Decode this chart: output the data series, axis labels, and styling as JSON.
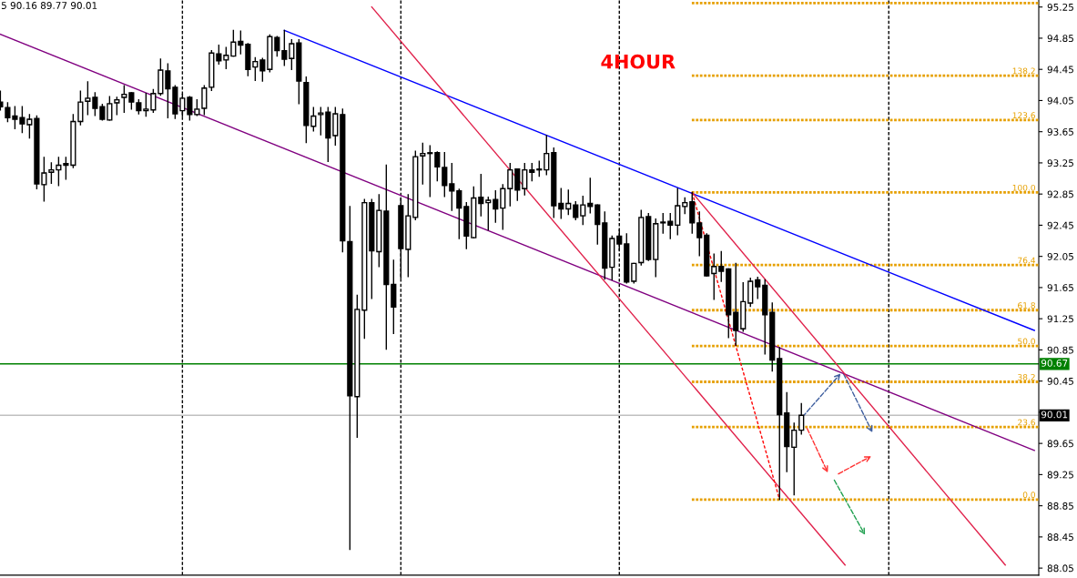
{
  "chart_data": {
    "type": "candlestick",
    "categories": [
      null,
      null,
      null,
      null,
      null,
      null,
      null,
      null,
      null,
      null,
      null,
      null,
      null,
      null,
      null,
      null,
      null,
      null,
      null,
      null,
      null,
      null,
      null,
      null,
      null,
      null,
      null,
      null,
      null,
      null,
      null,
      null,
      null,
      null,
      null,
      null,
      null,
      null,
      null,
      null,
      null,
      null,
      null,
      null,
      null,
      null,
      null,
      null,
      null,
      null,
      null,
      null,
      null,
      null,
      null,
      null,
      null,
      null,
      null,
      null,
      null,
      null,
      null,
      null,
      null,
      null,
      null,
      null,
      null,
      null,
      null,
      null,
      null,
      null,
      null,
      null,
      null,
      null,
      null,
      null,
      null,
      null,
      null,
      null,
      null,
      null,
      null,
      null,
      null,
      null,
      null,
      null,
      null,
      null,
      null,
      null,
      null,
      null,
      null,
      null,
      null,
      null,
      null,
      null,
      null,
      null,
      null,
      null,
      null,
      null,
      null,
      null,
      null,
      null,
      null,
      null,
      null,
      null,
      null,
      null,
      null,
      null,
      null,
      null,
      null,
      null,
      null,
      null,
      null,
      null,
      null,
      null,
      null,
      null,
      null,
      null,
      null,
      null,
      null,
      null,
      null,
      null,
      null
    ],
    "ohlc": [
      [
        94.03,
        94.17,
        93.93,
        93.97
      ],
      [
        93.96,
        94.02,
        93.78,
        93.83
      ],
      [
        93.85,
        93.97,
        93.69,
        93.81
      ],
      [
        93.83,
        93.97,
        93.64,
        93.75
      ],
      [
        93.74,
        93.87,
        93.57,
        93.81
      ],
      [
        93.82,
        93.85,
        92.92,
        92.98
      ],
      [
        92.97,
        93.32,
        92.76,
        93.12
      ],
      [
        93.13,
        93.25,
        92.99,
        93.16
      ],
      [
        93.16,
        93.32,
        92.96,
        93.22
      ],
      [
        93.24,
        93.32,
        93.04,
        93.22
      ],
      [
        93.22,
        93.87,
        93.19,
        93.78
      ],
      [
        93.78,
        94.17,
        93.74,
        94.03
      ],
      [
        94.04,
        94.29,
        93.87,
        94.08
      ],
      [
        94.09,
        94.15,
        93.86,
        93.95
      ],
      [
        93.97,
        94.0,
        93.8,
        93.81
      ],
      [
        93.8,
        94.1,
        93.8,
        94.01
      ],
      [
        94.02,
        94.09,
        93.87,
        94.06
      ],
      [
        94.09,
        94.24,
        93.9,
        94.13
      ],
      [
        94.15,
        94.15,
        93.94,
        94.03
      ],
      [
        94.02,
        94.06,
        93.88,
        93.92
      ],
      [
        93.92,
        94.14,
        93.85,
        93.94
      ],
      [
        93.93,
        94.19,
        93.9,
        94.14
      ],
      [
        94.14,
        94.58,
        94.12,
        94.44
      ],
      [
        94.43,
        94.52,
        93.83,
        94.2
      ],
      [
        94.22,
        94.24,
        93.82,
        93.88
      ],
      [
        93.92,
        94.13,
        93.85,
        94.08
      ],
      [
        94.09,
        94.1,
        93.8,
        93.87
      ],
      [
        93.87,
        94.06,
        93.86,
        93.94
      ],
      [
        93.95,
        94.24,
        93.87,
        94.21
      ],
      [
        94.22,
        94.69,
        94.18,
        94.66
      ],
      [
        94.65,
        94.76,
        94.52,
        94.56
      ],
      [
        94.57,
        94.73,
        94.46,
        94.63
      ],
      [
        94.62,
        94.95,
        94.62,
        94.8
      ],
      [
        94.81,
        94.94,
        94.65,
        94.76
      ],
      [
        94.77,
        94.78,
        94.37,
        94.45
      ],
      [
        94.48,
        94.6,
        94.31,
        94.55
      ],
      [
        94.57,
        94.59,
        94.3,
        94.43
      ],
      [
        94.45,
        94.89,
        94.42,
        94.87
      ],
      [
        94.86,
        94.87,
        94.62,
        94.69
      ],
      [
        94.69,
        94.95,
        94.5,
        94.58
      ],
      [
        94.59,
        94.83,
        94.45,
        94.78
      ],
      [
        94.79,
        94.83,
        94.01,
        94.3
      ],
      [
        94.28,
        94.35,
        93.51,
        93.73
      ],
      [
        93.72,
        93.96,
        93.66,
        93.85
      ],
      [
        93.87,
        93.96,
        93.61,
        93.89
      ],
      [
        93.9,
        93.96,
        93.27,
        93.57
      ],
      [
        93.6,
        93.96,
        93.48,
        93.88
      ],
      [
        93.87,
        93.94,
        92.11,
        92.25
      ],
      [
        92.24,
        92.69,
        88.29,
        90.26
      ],
      [
        90.25,
        91.55,
        89.73,
        91.37
      ],
      [
        91.36,
        92.78,
        91.0,
        92.74
      ],
      [
        92.74,
        92.78,
        91.51,
        92.12
      ],
      [
        92.11,
        92.84,
        91.92,
        92.64
      ],
      [
        92.63,
        93.22,
        90.86,
        91.69
      ],
      [
        91.69,
        92.0,
        91.06,
        91.4
      ],
      [
        92.7,
        92.8,
        91.77,
        92.15
      ],
      [
        92.14,
        92.84,
        91.79,
        92.57
      ],
      [
        92.55,
        93.4,
        92.52,
        93.33
      ],
      [
        93.34,
        93.5,
        92.98,
        93.37
      ],
      [
        93.38,
        93.47,
        92.82,
        93.37
      ],
      [
        93.38,
        93.39,
        93.02,
        93.2
      ],
      [
        93.19,
        93.38,
        92.82,
        92.96
      ],
      [
        92.98,
        93.24,
        92.64,
        92.89
      ],
      [
        92.89,
        92.91,
        92.28,
        92.67
      ],
      [
        92.69,
        92.74,
        92.15,
        92.31
      ],
      [
        92.29,
        92.94,
        92.29,
        92.8
      ],
      [
        92.81,
        93.1,
        92.57,
        92.73
      ],
      [
        92.74,
        92.81,
        92.39,
        92.77
      ],
      [
        92.78,
        92.89,
        92.49,
        92.66
      ],
      [
        92.67,
        92.97,
        92.4,
        92.92
      ],
      [
        92.92,
        93.24,
        92.7,
        93.16
      ],
      [
        93.17,
        93.17,
        92.77,
        92.9
      ],
      [
        92.92,
        93.24,
        92.84,
        93.16
      ],
      [
        93.16,
        93.24,
        93.02,
        93.13
      ],
      [
        93.17,
        93.27,
        93.08,
        93.16
      ],
      [
        93.16,
        93.6,
        93.1,
        93.37
      ],
      [
        93.38,
        93.44,
        92.55,
        92.7
      ],
      [
        92.73,
        92.92,
        92.54,
        92.66
      ],
      [
        92.66,
        92.9,
        92.59,
        92.73
      ],
      [
        92.71,
        92.75,
        92.52,
        92.55
      ],
      [
        92.57,
        92.82,
        92.46,
        92.71
      ],
      [
        92.73,
        93.05,
        92.61,
        92.69
      ],
      [
        92.71,
        92.71,
        92.21,
        92.46
      ],
      [
        92.48,
        92.62,
        91.76,
        91.9
      ],
      [
        91.91,
        92.31,
        91.75,
        92.28
      ],
      [
        92.31,
        92.39,
        92.13,
        92.21
      ],
      [
        92.21,
        92.34,
        91.71,
        91.72
      ],
      [
        91.73,
        91.96,
        91.71,
        91.96
      ],
      [
        91.97,
        92.64,
        91.94,
        92.55
      ],
      [
        92.56,
        92.6,
        92.0,
        92.01
      ],
      [
        92.01,
        92.53,
        91.79,
        92.47
      ],
      [
        92.49,
        92.6,
        92.35,
        92.48
      ],
      [
        92.5,
        92.6,
        92.28,
        92.45
      ],
      [
        92.45,
        92.92,
        92.33,
        92.7
      ],
      [
        92.69,
        92.8,
        92.6,
        92.74
      ],
      [
        92.75,
        92.87,
        92.35,
        92.48
      ],
      [
        92.48,
        92.62,
        92.06,
        92.29
      ],
      [
        92.32,
        92.34,
        91.8,
        91.8
      ],
      [
        91.83,
        92.08,
        91.5,
        91.92
      ],
      [
        91.92,
        92.11,
        91.73,
        91.86
      ],
      [
        91.89,
        91.89,
        91.01,
        91.3
      ],
      [
        91.33,
        91.96,
        90.91,
        91.1
      ],
      [
        91.12,
        91.71,
        91.09,
        91.47
      ],
      [
        91.45,
        91.77,
        91.41,
        91.73
      ],
      [
        91.75,
        91.78,
        91.51,
        91.66
      ],
      [
        91.68,
        91.75,
        90.8,
        91.3
      ],
      [
        91.33,
        91.45,
        90.58,
        90.72
      ],
      [
        90.74,
        90.88,
        88.93,
        90.02
      ],
      [
        90.04,
        90.3,
        89.29,
        89.61
      ],
      [
        89.6,
        89.91,
        88.99,
        89.82
      ],
      [
        89.82,
        90.16,
        89.77,
        90.01
      ],
      null,
      null,
      null,
      null,
      null,
      null,
      null,
      null,
      null,
      null,
      null,
      null,
      null,
      null,
      null,
      null,
      null,
      null,
      null,
      null,
      null,
      null,
      null,
      null,
      null,
      null,
      null,
      null,
      null,
      null,
      null,
      null
    ],
    "series": [
      {
        "type": "line",
        "color": "#0000ff",
        "values": [
          null,
          null,
          null,
          null,
          null,
          null,
          null,
          null,
          null,
          null,
          null,
          null,
          null,
          null,
          null,
          null,
          null,
          null,
          null,
          null,
          null,
          null,
          null,
          null,
          null,
          null,
          null,
          null,
          null,
          null,
          null,
          null,
          null,
          null,
          null,
          null,
          null,
          null,
          null,
          94.95,
          null,
          null,
          null,
          null,
          null,
          null,
          null,
          null,
          null,
          null,
          null,
          null,
          null,
          null,
          null,
          null,
          null,
          null,
          null,
          null,
          null,
          null,
          null,
          null,
          null,
          null,
          null,
          null,
          null,
          null,
          null,
          null,
          null,
          null,
          null,
          null,
          null,
          null,
          null,
          null,
          null,
          null,
          null,
          null,
          null,
          null,
          null,
          null,
          null,
          null,
          null,
          null,
          null,
          null,
          null,
          null,
          null,
          null,
          null,
          null,
          null,
          null,
          null,
          null,
          null,
          null,
          null,
          null,
          null,
          null,
          null,
          null,
          null,
          null,
          null,
          null,
          null,
          null,
          null,
          null,
          null,
          null,
          null,
          null,
          null,
          null,
          null,
          null,
          null,
          null,
          null,
          null,
          null,
          null,
          null,
          null,
          null,
          null,
          null,
          null,
          null,
          null,
          91.1
        ]
      },
      {
        "type": "line",
        "color": "#800080",
        "values": [
          94.9,
          null,
          null,
          null,
          null,
          null,
          null,
          null,
          null,
          null,
          null,
          null,
          null,
          null,
          null,
          null,
          null,
          null,
          null,
          null,
          null,
          null,
          null,
          null,
          null,
          null,
          null,
          null,
          null,
          null,
          null,
          null,
          null,
          null,
          null,
          null,
          null,
          null,
          null,
          null,
          null,
          null,
          null,
          null,
          null,
          null,
          null,
          null,
          null,
          null,
          null,
          null,
          null,
          null,
          null,
          null,
          null,
          null,
          null,
          null,
          null,
          null,
          null,
          null,
          null,
          null,
          null,
          null,
          null,
          null,
          null,
          null,
          null,
          null,
          null,
          null,
          null,
          null,
          null,
          null,
          null,
          null,
          null,
          null,
          null,
          null,
          null,
          null,
          null,
          null,
          null,
          null,
          null,
          null,
          null,
          null,
          null,
          null,
          null,
          null,
          null,
          null,
          null,
          null,
          null,
          null,
          null,
          null,
          null,
          null,
          null,
          null,
          null,
          null,
          null,
          null,
          null,
          null,
          null,
          null,
          null,
          null,
          null,
          null,
          null,
          null,
          null,
          null,
          null,
          null,
          null,
          null,
          null,
          null,
          null,
          null,
          null,
          null,
          null,
          null,
          null,
          null,
          89.56
        ]
      },
      {
        "type": "line",
        "color": "#e0204a",
        "values": [
          null,
          null,
          null,
          null,
          null,
          null,
          null,
          null,
          null,
          null,
          null,
          null,
          null,
          null,
          null,
          null,
          null,
          null,
          null,
          null,
          null,
          null,
          null,
          null,
          null,
          null,
          null,
          null,
          null,
          null,
          null,
          null,
          null,
          null,
          null,
          null,
          null,
          null,
          null,
          null,
          null,
          null,
          null,
          null,
          null,
          null,
          null,
          null,
          null,
          null,
          null,
          95.25,
          null,
          null,
          null,
          null,
          null,
          null,
          null,
          null,
          null,
          null,
          null,
          null,
          null,
          null,
          null,
          null,
          null,
          null,
          null,
          null,
          null,
          null,
          null,
          null,
          null,
          null,
          null,
          null,
          null,
          null,
          null,
          null,
          null,
          null,
          null,
          null,
          null,
          null,
          null,
          null,
          null,
          null,
          null,
          null,
          null,
          null,
          null,
          null,
          null,
          null,
          null,
          null,
          null,
          null,
          null,
          null,
          null,
          null,
          null,
          null,
          null,
          null,
          null,
          null,
          88.09,
          null,
          null,
          null,
          null,
          null,
          null,
          null,
          null,
          null,
          null,
          null,
          null,
          null,
          null,
          null,
          null,
          null,
          null,
          null,
          null,
          null,
          null,
          null,
          null,
          null,
          null
        ]
      },
      {
        "type": "line",
        "color": "#e0204a",
        "values": [
          null,
          null,
          null,
          null,
          null,
          null,
          null,
          null,
          null,
          null,
          null,
          null,
          null,
          null,
          null,
          null,
          null,
          null,
          null,
          null,
          null,
          null,
          null,
          null,
          null,
          null,
          null,
          null,
          null,
          null,
          null,
          null,
          null,
          null,
          null,
          null,
          null,
          null,
          null,
          null,
          null,
          null,
          null,
          null,
          null,
          null,
          null,
          null,
          null,
          null,
          null,
          null,
          null,
          null,
          null,
          null,
          null,
          null,
          null,
          null,
          null,
          null,
          null,
          null,
          null,
          null,
          null,
          null,
          null,
          null,
          null,
          null,
          null,
          null,
          null,
          null,
          null,
          null,
          null,
          null,
          null,
          null,
          null,
          null,
          null,
          null,
          null,
          null,
          null,
          null,
          null,
          null,
          null,
          null,
          null,
          92.87,
          null,
          null,
          null,
          null,
          null,
          null,
          null,
          null,
          null,
          null,
          null,
          null,
          null,
          null,
          null,
          null,
          null,
          null,
          null,
          null,
          null,
          null,
          null,
          null,
          null,
          null,
          null,
          null,
          null,
          null,
          null,
          null,
          null,
          null,
          null,
          null,
          null,
          null,
          null,
          null,
          null,
          null,
          88.09,
          null,
          null,
          null,
          null
        ]
      },
      {
        "type": "line",
        "color": "#ff0000",
        "line_style": "dashed",
        "values": [
          null,
          null,
          null,
          null,
          null,
          null,
          null,
          null,
          null,
          null,
          null,
          null,
          null,
          null,
          null,
          null,
          null,
          null,
          null,
          null,
          null,
          null,
          null,
          null,
          null,
          null,
          null,
          null,
          null,
          null,
          null,
          null,
          null,
          null,
          null,
          null,
          null,
          null,
          null,
          null,
          null,
          null,
          null,
          null,
          null,
          null,
          null,
          null,
          null,
          null,
          null,
          null,
          null,
          null,
          null,
          null,
          null,
          null,
          null,
          null,
          null,
          null,
          null,
          null,
          null,
          null,
          null,
          null,
          null,
          null,
          null,
          null,
          null,
          null,
          null,
          null,
          null,
          null,
          null,
          null,
          null,
          null,
          null,
          null,
          null,
          null,
          null,
          null,
          null,
          null,
          null,
          null,
          null,
          null,
          null,
          92.87,
          null,
          null,
          null,
          null,
          null,
          null,
          null,
          null,
          null,
          null,
          null,
          88.93,
          null,
          null,
          null,
          null,
          null,
          null,
          null,
          null,
          null,
          null,
          null,
          null,
          null,
          null,
          null,
          null,
          null,
          null,
          null,
          null,
          null,
          null,
          null,
          null,
          null,
          null,
          null,
          null,
          null,
          null,
          null,
          null,
          null,
          null,
          null
        ]
      }
    ],
    "ylim": [
      87.96,
      95.34
    ],
    "yticks": [
      95.25,
      94.85,
      94.45,
      94.05,
      93.65,
      93.25,
      92.85,
      92.45,
      92.05,
      91.65,
      91.25,
      90.85,
      90.45,
      {
        "value": 90.05,
        "label": null
      },
      89.65,
      89.25,
      88.85,
      88.45,
      88.05
    ],
    "tick_labels": "y",
    "legend": false,
    "ref_lines": [
      {
        "axis": "y",
        "value": 95.3,
        "color": "#e6a000",
        "line_style": "dotted"
      },
      {
        "axis": "y",
        "value": 94.37,
        "color": "#e6a000",
        "line_style": "dotted"
      },
      {
        "axis": "y",
        "value": 93.8,
        "color": "#e6a000",
        "line_style": "dotted"
      },
      {
        "axis": "y",
        "value": 92.87,
        "color": "#e6a000",
        "line_style": "dotted"
      },
      {
        "axis": "y",
        "value": 91.94,
        "color": "#e6a000",
        "line_style": "dotted"
      },
      {
        "axis": "y",
        "value": 91.36,
        "color": "#e6a000",
        "line_style": "dotted"
      },
      {
        "axis": "y",
        "value": 90.9,
        "color": "#e6a000",
        "line_style": "dotted"
      },
      {
        "axis": "y",
        "value": 90.44,
        "color": "#e6a000",
        "line_style": "dotted"
      },
      {
        "axis": "y",
        "value": 89.86,
        "color": "#e6a000",
        "line_style": "dotted"
      },
      {
        "axis": "y",
        "value": 88.93,
        "color": "#e6a000",
        "line_style": "dotted"
      },
      {
        "axis": "y",
        "value": 90.67,
        "label": "90.67",
        "color": "#008000",
        "line_style": "solid"
      },
      {
        "axis": "y",
        "value": 90.01,
        "label": "90.01",
        "color": "#c0c0c0",
        "line_style": "solid"
      }
    ],
    "annotations": [
      "5 90.16 89.77 90.01",
      "4HOUR",
      {
        "text": "138.2",
        "y": 94.37
      },
      {
        "text": "123.6",
        "y": 93.8
      },
      {
        "text": "100.0",
        "y": 92.87
      },
      {
        "text": "76.4",
        "y": 91.94
      },
      {
        "text": "61.8",
        "y": 91.36
      },
      {
        "text": "50.0",
        "y": 90.9
      },
      {
        "text": "38.2",
        "y": 90.44
      },
      {
        "text": "23.6",
        "y": 89.86
      },
      {
        "text": "0.0",
        "y": 88.93
      }
    ]
  }
}
